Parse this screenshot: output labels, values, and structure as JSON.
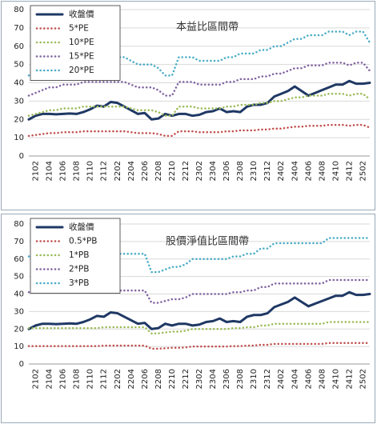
{
  "chart_data": [
    {
      "type": "line",
      "title": "本益比區間帶",
      "legend": "upper left",
      "grid": true,
      "categories": [
        null,
        "2102",
        null,
        "2104",
        null,
        "2106",
        null,
        "2108",
        null,
        "2110",
        null,
        "2112",
        null,
        "2202",
        null,
        "2204",
        null,
        "2206",
        null,
        "2208",
        null,
        "2210",
        null,
        "2212",
        null,
        "2302",
        null,
        "2304",
        null,
        "2306",
        null,
        "2308",
        null,
        "2310",
        null,
        "2312",
        null,
        "2402",
        null,
        "2404",
        null,
        "2406",
        null,
        "2408",
        null,
        "2410",
        null,
        "2412",
        null,
        "2502",
        null
      ],
      "ylim": [
        0,
        80
      ],
      "yticks": [
        0,
        10,
        20,
        30,
        40,
        50,
        60,
        70,
        80
      ],
      "series": [
        {
          "name": "收盤價",
          "color": "#1f3864",
          "values": [
            20,
            22,
            23,
            23,
            22.8,
            23,
            23.2,
            23,
            24,
            25.5,
            27.5,
            27,
            29.5,
            29,
            27,
            25,
            23,
            23.5,
            20,
            20.5,
            23,
            22,
            23,
            23,
            22,
            22.5,
            24,
            24.5,
            26,
            24,
            24.5,
            24,
            27,
            28,
            28,
            29,
            32.5,
            34,
            35.5,
            38,
            35.5,
            33,
            34.5,
            36,
            37.5,
            39,
            39,
            41,
            39.5,
            39.5,
            40
          ]
        },
        {
          "name": "5*PE",
          "color": "#c0504d",
          "values": [
            11,
            11.5,
            12,
            12.5,
            12.5,
            13,
            13,
            13,
            13.5,
            13.5,
            13.5,
            13.5,
            13.5,
            13.5,
            13.5,
            13,
            12.5,
            12.5,
            12.5,
            12,
            11,
            11,
            13.5,
            13.5,
            13.5,
            13,
            13,
            13,
            13,
            13.5,
            13.5,
            14,
            14,
            14,
            14.5,
            14.5,
            15,
            15,
            15.5,
            16,
            16,
            16.5,
            16.5,
            16.5,
            17,
            17,
            17,
            16.5,
            17,
            17,
            15.5
          ]
        },
        {
          "name": "10*PE",
          "color": "#9bbb59",
          "values": [
            22,
            23,
            24,
            25,
            25,
            26,
            26,
            26,
            27,
            27,
            27,
            27,
            27,
            27,
            27,
            26,
            25,
            25,
            25,
            24,
            22,
            22,
            27,
            27,
            27,
            26,
            26,
            26,
            26,
            27,
            27,
            28,
            28,
            28,
            29,
            29,
            30,
            30,
            31,
            32,
            32,
            33,
            33,
            33,
            34,
            34,
            34,
            33,
            34,
            34,
            31
          ]
        },
        {
          "name": "15*PE",
          "color": "#8064a2",
          "values": [
            33,
            34.5,
            36,
            37.5,
            37.5,
            39,
            39,
            39,
            40.5,
            40.5,
            40.5,
            40.5,
            40.5,
            40.5,
            40.5,
            39,
            37.5,
            37.5,
            37.5,
            36,
            33,
            33,
            40.5,
            40.5,
            40.5,
            39,
            39,
            39,
            39,
            40.5,
            40.5,
            42,
            42,
            42,
            43.5,
            43.5,
            45,
            45,
            46.5,
            48,
            48,
            49.5,
            49.5,
            49.5,
            51,
            51,
            51,
            49.5,
            51,
            51,
            46.5
          ]
        },
        {
          "name": "20*PE",
          "color": "#4bacc6",
          "values": [
            44,
            46,
            48,
            50,
            50,
            52,
            52,
            52,
            54,
            54,
            54,
            54,
            54,
            54,
            54,
            52,
            50,
            50,
            50,
            48,
            44,
            44,
            54,
            54,
            54,
            52,
            52,
            52,
            52,
            54,
            54,
            56,
            56,
            56,
            58,
            58,
            60,
            60,
            62,
            64,
            64,
            66,
            66,
            66,
            68,
            68,
            68,
            66,
            68,
            68,
            62
          ]
        }
      ]
    },
    {
      "type": "line",
      "title": "股價淨值比區間帶",
      "legend": "upper left",
      "grid": true,
      "categories": [
        null,
        "2102",
        null,
        "2104",
        null,
        "2106",
        null,
        "2108",
        null,
        "2110",
        null,
        "2112",
        null,
        "2202",
        null,
        "2204",
        null,
        "2206",
        null,
        "2208",
        null,
        "2210",
        null,
        "2212",
        null,
        "2302",
        null,
        "2304",
        null,
        "2306",
        null,
        "2308",
        null,
        "2310",
        null,
        "2312",
        null,
        "2402",
        null,
        "2404",
        null,
        "2406",
        null,
        "2408",
        null,
        "2410",
        null,
        "2412",
        null,
        "2502",
        null
      ],
      "ylim": [
        0,
        80
      ],
      "yticks": [
        0,
        10,
        20,
        30,
        40,
        50,
        60,
        70,
        80
      ],
      "series": [
        {
          "name": "收盤價",
          "color": "#1f3864",
          "values": [
            20,
            22,
            23,
            23,
            22.8,
            23,
            23.2,
            23,
            24,
            25.5,
            27.5,
            27,
            29.5,
            29,
            27,
            25,
            23,
            23.5,
            20,
            20.5,
            23,
            22,
            23,
            23,
            22,
            22.5,
            24,
            24.5,
            26,
            24,
            24.5,
            24,
            27,
            28,
            28,
            29,
            32.5,
            34,
            35.5,
            38,
            35.5,
            33,
            34.5,
            36,
            37.5,
            39,
            39,
            41,
            39.5,
            39.5,
            40
          ]
        },
        {
          "name": "0.5*PB",
          "color": "#c0504d",
          "values": [
            10.25,
            10.25,
            10.25,
            10.25,
            10.25,
            10.25,
            10.25,
            10.25,
            10.25,
            10.25,
            10.25,
            10.5,
            10.5,
            10.5,
            10.5,
            10.5,
            10.5,
            10.5,
            8.75,
            8.75,
            9,
            9.25,
            9.25,
            9.5,
            10,
            10,
            10,
            10,
            10,
            10,
            10.25,
            10.25,
            10.5,
            10.5,
            11,
            11,
            11.5,
            11.5,
            11.5,
            11.5,
            11.5,
            11.5,
            11.5,
            11.5,
            12,
            12,
            12,
            12,
            12,
            12,
            12
          ]
        },
        {
          "name": "1*PB",
          "color": "#9bbb59",
          "values": [
            20.5,
            20.5,
            20.5,
            20.5,
            20.5,
            20.5,
            20.5,
            20.5,
            20.5,
            20.5,
            20.5,
            21,
            21,
            21,
            21,
            21,
            21,
            21,
            17.5,
            17.5,
            18,
            18.5,
            18.5,
            19,
            20,
            20,
            20,
            20,
            20,
            20,
            20.5,
            20.5,
            21,
            21,
            22,
            22,
            23,
            23,
            23,
            23,
            23,
            23,
            23,
            23,
            24,
            24,
            24,
            24,
            24,
            24,
            24
          ]
        },
        {
          "name": "2*PB",
          "color": "#8064a2",
          "values": [
            41,
            41,
            41,
            41,
            41,
            41,
            41,
            41,
            41,
            41,
            41,
            42,
            42,
            42,
            42,
            42,
            42,
            42,
            35,
            35,
            36,
            37,
            37,
            38,
            40,
            40,
            40,
            40,
            40,
            40,
            41,
            41,
            42,
            42,
            44,
            44,
            46,
            46,
            46,
            46,
            46,
            46,
            46,
            46,
            48,
            48,
            48,
            48,
            48,
            48,
            48
          ]
        },
        {
          "name": "3*PB",
          "color": "#4bacc6",
          "values": [
            61.5,
            61.5,
            61.5,
            61.5,
            61.5,
            61.5,
            61.5,
            61.5,
            61.5,
            61.5,
            61.5,
            63,
            63,
            63,
            63,
            63,
            63,
            63,
            52.5,
            52.5,
            54,
            55.5,
            55.5,
            57,
            60,
            60,
            60,
            60,
            60,
            60,
            61.5,
            61.5,
            63,
            63,
            66,
            66,
            69,
            69,
            69,
            69,
            69,
            69,
            69,
            69,
            72,
            72,
            72,
            72,
            72,
            72,
            72
          ]
        }
      ]
    }
  ]
}
